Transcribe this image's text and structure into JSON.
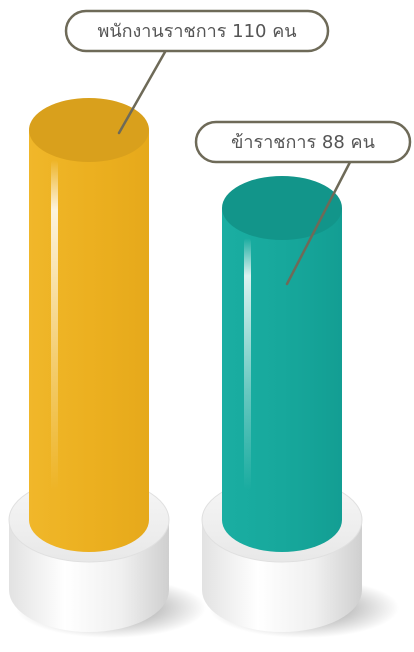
{
  "chart_data": {
    "type": "bar",
    "style": "3d-cylinder",
    "title": "",
    "xlabel": "",
    "ylabel": "",
    "categories": [
      "พนักงานราชการ",
      "ข้าราชการ"
    ],
    "values": [
      110,
      88
    ],
    "ylim": [
      0,
      110
    ],
    "grid": false,
    "legend": "none",
    "callouts": [
      "พนักงานราชการ 110 คน",
      "ข้าราชการ 88 คน"
    ],
    "colors": {
      "bar_1": "#ECB020",
      "bar_1_top": "#D9A01C",
      "bar_2": "#17A89C",
      "bar_2_top": "#12958A",
      "pedestal": "#F2F2F2",
      "callout_border": "#6E6A58",
      "callout_text": "#555555"
    }
  }
}
